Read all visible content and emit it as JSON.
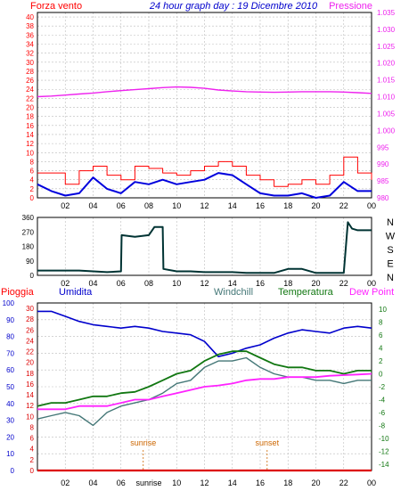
{
  "title": "24 hour graph day : 19 Dicembre 2010",
  "colors": {
    "wind": "#ff0000",
    "gust_blue": "#0000dd",
    "pressure": "#ee22ee",
    "direction": "#003333",
    "humidity": "#0000cc",
    "windchill": "#447777",
    "temperature": "#117711",
    "dewpoint": "#ff22ff",
    "rain": "#dd0000",
    "title": "#0000cc",
    "sun": "#cc6600",
    "grid": "#bbbbbb",
    "frame": "#000000"
  },
  "x_ticks": [
    "02",
    "04",
    "06",
    "08",
    "10",
    "12",
    "14",
    "16",
    "18",
    "20",
    "22",
    "00"
  ],
  "sunrise_tick": "sunrise",
  "chart_data": [
    {
      "type": "line",
      "title": "24 hour graph day : 19 Dicembre 2010",
      "left_label": "Forza vento",
      "right_label": "Pressione",
      "y_left_ticks": [
        "0",
        "2",
        "4",
        "6",
        "8",
        "10",
        "12",
        "14",
        "16",
        "18",
        "20",
        "22",
        "24",
        "26",
        "28",
        "30",
        "32",
        "34",
        "36",
        "38",
        "40"
      ],
      "y_right_ticks": [
        "980",
        "985",
        "990",
        "995",
        "1.000",
        "1.005",
        "1.010",
        "1.015",
        "1.020",
        "1.025",
        "1.030",
        "1.035"
      ],
      "ylim_left": [
        0,
        41
      ],
      "ylim_right": [
        980,
        1035
      ],
      "x": [
        0,
        1,
        2,
        3,
        4,
        5,
        6,
        7,
        8,
        9,
        10,
        11,
        12,
        13,
        14,
        15,
        16,
        17,
        18,
        19,
        20,
        21,
        22,
        23,
        24
      ],
      "series": [
        {
          "name": "Pressione",
          "axis": "right",
          "values": [
            1010.0,
            1010.2,
            1010.5,
            1010.8,
            1011.1,
            1011.5,
            1011.8,
            1012.1,
            1012.4,
            1012.7,
            1012.9,
            1012.8,
            1012.5,
            1012.0,
            1011.7,
            1011.5,
            1011.4,
            1011.3,
            1011.4,
            1011.5,
            1011.5,
            1011.5,
            1011.4,
            1011.2,
            1011.0
          ]
        },
        {
          "name": "Forza vento",
          "axis": "left",
          "values": [
            3.0,
            1.5,
            0.5,
            1.0,
            4.5,
            2.0,
            1.0,
            3.5,
            3.0,
            4.0,
            3.0,
            3.5,
            4.0,
            5.5,
            5.0,
            3.0,
            1.0,
            0.5,
            0.5,
            1.0,
            0.0,
            0.5,
            3.5,
            1.5,
            1.5
          ]
        },
        {
          "name": "Forza vento (max)",
          "axis": "left",
          "values": [
            5.5,
            5.5,
            3.0,
            6.0,
            7.0,
            5.0,
            4.0,
            7.0,
            6.5,
            5.5,
            5.0,
            6.0,
            7.0,
            8.0,
            7.0,
            5.0,
            4.0,
            2.5,
            3.0,
            4.0,
            3.0,
            5.0,
            9.0,
            5.5,
            4.0
          ]
        }
      ]
    },
    {
      "type": "line",
      "y_ticks": [
        "360",
        "270",
        "180",
        "90",
        "0"
      ],
      "ylim": [
        0,
        360
      ],
      "compass_labels": [
        "N",
        "W",
        "S",
        "E",
        "N"
      ],
      "x": [
        0,
        1,
        2,
        3,
        4,
        5,
        6,
        6.05,
        7,
        8,
        8.4,
        9,
        9.05,
        10,
        11,
        12,
        13,
        14,
        15,
        16,
        17,
        18,
        19,
        20,
        21,
        22,
        22.3,
        22.6,
        23,
        24
      ],
      "series": [
        {
          "name": "Direzione vento",
          "values": [
            30,
            30,
            30,
            30,
            25,
            20,
            25,
            250,
            240,
            250,
            300,
            300,
            40,
            25,
            25,
            20,
            20,
            20,
            15,
            15,
            15,
            40,
            40,
            15,
            15,
            15,
            330,
            290,
            280,
            280
          ]
        }
      ]
    },
    {
      "type": "line",
      "left_label_1": "Pioggia",
      "left_label_2": "Umidita",
      "labels_right": [
        "Windchill",
        "Temperatura",
        "Dew Point"
      ],
      "y_left_ticks": [
        "0",
        "10",
        "20",
        "30",
        "40",
        "50",
        "60",
        "70",
        "80",
        "90",
        "100"
      ],
      "y_left2_ticks": [
        "0",
        "2",
        "4",
        "6",
        "8",
        "10",
        "12",
        "14",
        "16",
        "18",
        "20",
        "22",
        "24",
        "26",
        "28",
        "30"
      ],
      "y_right_ticks": [
        "-14",
        "-12",
        "-10",
        "-8",
        "-6",
        "-4",
        "-2",
        "0",
        "2",
        "4",
        "6",
        "8",
        "10"
      ],
      "ylim_humidity": [
        0,
        100
      ],
      "ylim_temperature": [
        -15,
        11
      ],
      "annotations": [
        "sunrise",
        "sunset"
      ],
      "x": [
        0,
        1,
        2,
        3,
        4,
        5,
        6,
        7,
        8,
        9,
        10,
        11,
        12,
        13,
        14,
        15,
        16,
        17,
        18,
        19,
        20,
        21,
        22,
        23,
        24
      ],
      "series": [
        {
          "name": "Umidita",
          "axis": "humidity",
          "values": [
            95,
            95,
            92,
            89,
            87,
            86,
            85,
            86,
            85,
            83,
            82,
            81,
            77,
            68,
            70,
            73,
            75,
            79,
            82,
            84,
            83,
            82,
            85,
            86,
            85
          ]
        },
        {
          "name": "Temperatura",
          "axis": "temperature",
          "values": [
            -5,
            -4.5,
            -4.5,
            -4,
            -3.5,
            -3.5,
            -3,
            -2.8,
            -2,
            -1,
            0,
            0.5,
            2,
            3,
            3.5,
            3.5,
            2.5,
            1.5,
            1,
            1,
            0.5,
            0.5,
            0,
            0.5,
            0.5
          ]
        },
        {
          "name": "Windchill",
          "axis": "temperature",
          "values": [
            -7,
            -6.5,
            -6,
            -6.5,
            -8,
            -6,
            -5,
            -4.5,
            -4,
            -3,
            -1.5,
            -1,
            1,
            2,
            2,
            2.5,
            1,
            0,
            -0.5,
            -0.5,
            -1,
            -1,
            -1.5,
            -1,
            -1
          ]
        },
        {
          "name": "Dew Point",
          "axis": "temperature",
          "values": [
            -5.5,
            -5.5,
            -5.5,
            -5,
            -5,
            -5,
            -4.5,
            -4,
            -4,
            -3.5,
            -3,
            -2.5,
            -2,
            -1.8,
            -1.5,
            -1,
            -0.8,
            -0.8,
            -0.5,
            -0.5,
            -0.5,
            -0.3,
            -0.2,
            -0.1,
            0
          ]
        },
        {
          "name": "Pioggia",
          "axis": "rain",
          "values": [
            0,
            0,
            0,
            0,
            0,
            0,
            0,
            0,
            0,
            0,
            0,
            0,
            0,
            0,
            0,
            0,
            0,
            0,
            0,
            0,
            0,
            0,
            0,
            0,
            0
          ]
        }
      ],
      "sunrise_hour": 7.6,
      "sunset_hour": 16.5
    }
  ]
}
